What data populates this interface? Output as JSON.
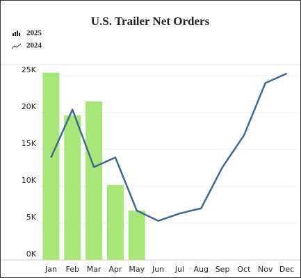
{
  "chart_data": {
    "type": "bar",
    "title": "U.S. Trailer Net Orders",
    "categories": [
      "Jan",
      "Feb",
      "Mar",
      "Apr",
      "May",
      "Jun",
      "Jul",
      "Aug",
      "Sep",
      "Oct",
      "Nov",
      "Dec"
    ],
    "series": [
      {
        "name": "2025",
        "type": "bar",
        "color": "#a6e878",
        "values": [
          25400,
          19600,
          21500,
          10200,
          6700,
          null,
          null,
          null,
          null,
          null,
          null,
          null
        ]
      },
      {
        "name": "2024",
        "type": "line",
        "color": "#3e6893",
        "values": [
          13900,
          20400,
          12600,
          13900,
          6700,
          5300,
          6300,
          7000,
          12600,
          16900,
          24000,
          25300
        ]
      }
    ],
    "ylim": [
      0,
      26500
    ],
    "yticks": [
      {
        "value": 0,
        "label": "0K"
      },
      {
        "value": 5000,
        "label": "5K"
      },
      {
        "value": 10000,
        "label": "10K"
      },
      {
        "value": 15000,
        "label": "15K"
      },
      {
        "value": 20000,
        "label": "20K"
      },
      {
        "value": 25000,
        "label": "25K"
      }
    ],
    "grid": true,
    "legend": "top-left"
  }
}
